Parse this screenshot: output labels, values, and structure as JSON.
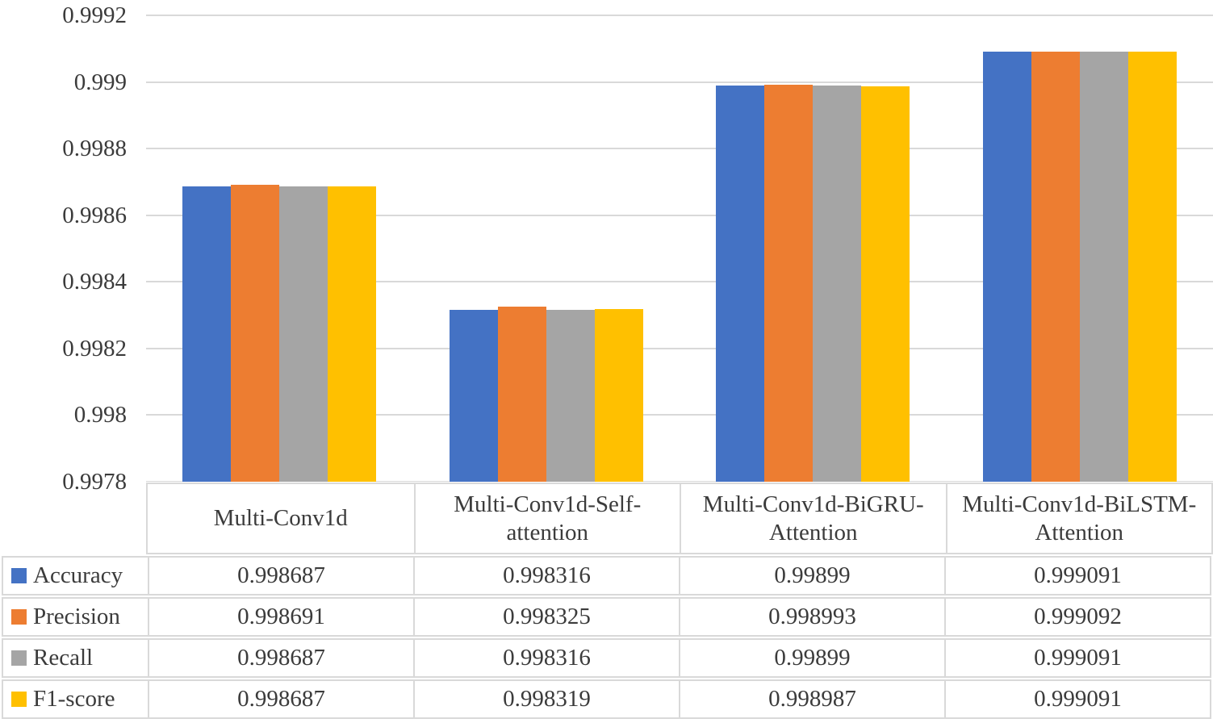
{
  "chart_data": {
    "type": "bar",
    "title": "",
    "xlabel": "",
    "ylabel": "",
    "grid": true,
    "legend_position": "table-left",
    "ylim": [
      0.9978,
      0.9992
    ],
    "y_ticks": [
      {
        "value": 0.9978,
        "label": "0.9978"
      },
      {
        "value": 0.998,
        "label": "0.998"
      },
      {
        "value": 0.9982,
        "label": "0.9982"
      },
      {
        "value": 0.9984,
        "label": "0.9984"
      },
      {
        "value": 0.9986,
        "label": "0.9986"
      },
      {
        "value": 0.9988,
        "label": "0.9988"
      },
      {
        "value": 0.999,
        "label": "0.999"
      },
      {
        "value": 0.9992,
        "label": "0.9992"
      }
    ],
    "categories": [
      "Multi-Conv1d",
      "Multi-Conv1d-Self-attention",
      "Multi-Conv1d-BiGRU-Attention",
      "Multi-Conv1d-BiLSTM-Attention"
    ],
    "series": [
      {
        "name": "Accuracy",
        "color": "#4472C4",
        "values": [
          0.998687,
          0.998316,
          0.99899,
          0.999091
        ],
        "display": [
          "0.998687",
          "0.998316",
          "0.99899",
          "0.999091"
        ]
      },
      {
        "name": "Precision",
        "color": "#ED7D31",
        "values": [
          0.998691,
          0.998325,
          0.998993,
          0.999092
        ],
        "display": [
          "0.998691",
          "0.998325",
          "0.998993",
          "0.999092"
        ]
      },
      {
        "name": "Recall",
        "color": "#A5A5A5",
        "values": [
          0.998687,
          0.998316,
          0.99899,
          0.999091
        ],
        "display": [
          "0.998687",
          "0.998316",
          "0.99899",
          "0.999091"
        ]
      },
      {
        "name": "F1-score",
        "color": "#FFC000",
        "values": [
          0.998687,
          0.998319,
          0.998987,
          0.999091
        ],
        "display": [
          "0.998687",
          "0.998319",
          "0.998987",
          "0.999091"
        ]
      }
    ],
    "colors": {
      "gridline": "#d9d9d9",
      "table_border": "#d9d9d9",
      "text": "#3b3b3b"
    }
  }
}
